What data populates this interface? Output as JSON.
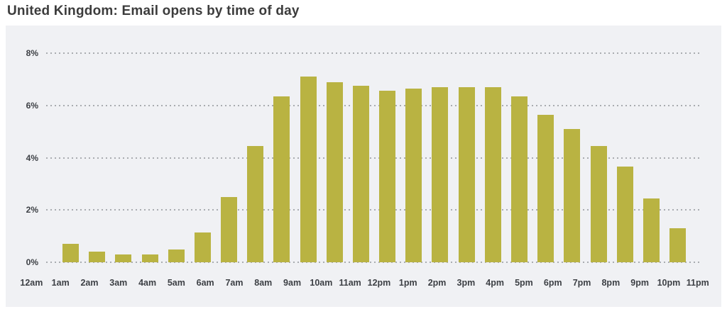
{
  "page": {
    "title": "United Kingdom: Email opens by time of day"
  },
  "chart_data": {
    "type": "bar",
    "title": "United Kingdom: Email opens by time of day",
    "categories": [
      "12am",
      "1am",
      "2am",
      "3am",
      "4am",
      "5am",
      "6am",
      "7am",
      "8am",
      "9am",
      "10am",
      "11am",
      "12pm",
      "1pm",
      "2pm",
      "3pm",
      "4pm",
      "5pm",
      "6pm",
      "7pm",
      "8pm",
      "9pm",
      "10pm",
      "11pm"
    ],
    "values": [
      0.7,
      0.4,
      0.3,
      0.3,
      0.5,
      1.15,
      2.5,
      4.45,
      6.35,
      7.1,
      6.9,
      6.75,
      6.55,
      6.65,
      6.7,
      6.7,
      6.7,
      6.35,
      5.65,
      5.1,
      4.45,
      3.65,
      2.45,
      1.3
    ],
    "xlabel": "",
    "ylabel": "",
    "unit": "%",
    "ylim": [
      0,
      8
    ],
    "yticks": [
      0,
      2,
      4,
      6,
      8
    ],
    "ytick_labels": [
      "0%",
      "2%",
      "4%",
      "6%",
      "8%"
    ],
    "grid": "horizontal-dotted",
    "legend": "none",
    "colors": {
      "bar": "#b9b342",
      "panel_background": "#f0f1f4",
      "gridline": "#a9acb0",
      "title_text": "#3c3c3c",
      "axis_text": "#3d4045",
      "page_background": "#ffffff"
    }
  }
}
